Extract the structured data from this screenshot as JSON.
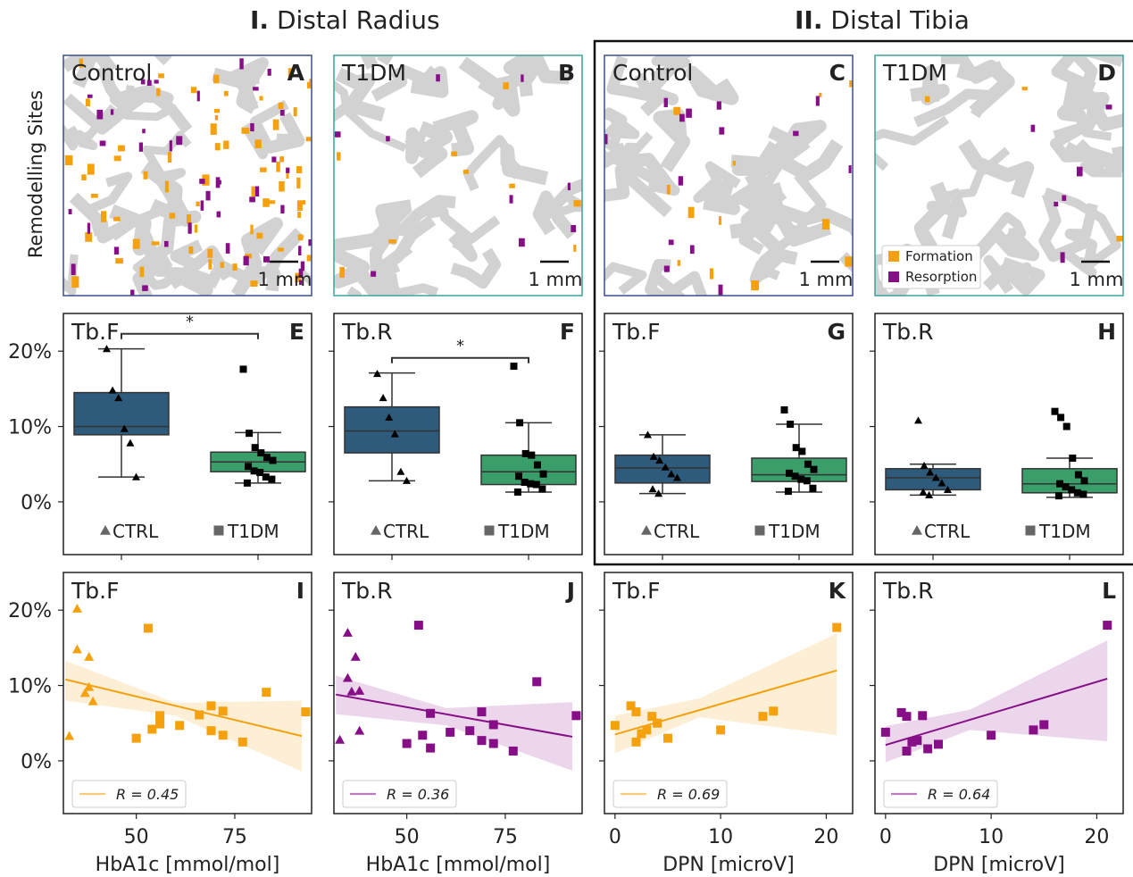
{
  "sections": {
    "left": {
      "roman": "I.",
      "label": "Distal Radius"
    },
    "right": {
      "roman": "II.",
      "label": "Distal Tibia"
    }
  },
  "row1_ylabel": "Remodelling Sites",
  "colors": {
    "ctrl": "#2e5a7c",
    "t1dm": "#3a9e6a",
    "formation": "#f5a10e",
    "resorption": "#860e86",
    "bone": "#d2d2d2",
    "frame_ctrl": "#3b4f8c",
    "frame_t1dm": "#3aa39a"
  },
  "legend_map": {
    "formation": "Formation",
    "resorption": "Resorption"
  },
  "maps": [
    {
      "title": "Control",
      "letter": "A",
      "scale": "1 mm",
      "frame": "ctrl",
      "seed": 11,
      "nForm": 70,
      "nRes": 45
    },
    {
      "title": "T1DM",
      "letter": "B",
      "scale": "1 mm",
      "frame": "t1dm",
      "seed": 23,
      "nForm": 10,
      "nRes": 9
    },
    {
      "title": "Control",
      "letter": "C",
      "scale": "1 mm",
      "frame": "ctrl",
      "seed": 37,
      "nForm": 12,
      "nRes": 14
    },
    {
      "title": "T1DM",
      "letter": "D",
      "scale": "1 mm",
      "frame": "t1dm",
      "seed": 53,
      "nForm": 3,
      "nRes": 6
    }
  ],
  "chart_data": [
    {
      "panel": "E",
      "type": "box",
      "title": "Tb.F",
      "ylim": [
        -7,
        25
      ],
      "yticks": [
        "0%",
        "10%",
        "20%"
      ],
      "categories": [
        "CTRL",
        "T1DM"
      ],
      "significance": "*",
      "boxes": [
        {
          "name": "CTRL",
          "whisker_low": 3.3,
          "q1": 8.9,
          "median": 10.0,
          "q3": 14.5,
          "whisker_high": 20.3,
          "points": [
            20.3,
            14.8,
            13.8,
            9.7,
            7.8,
            3.3
          ]
        },
        {
          "name": "T1DM",
          "whisker_low": 2.5,
          "q1": 4.0,
          "median": 5.3,
          "q3": 6.6,
          "whisker_high": 9.2,
          "points": [
            17.6,
            9.1,
            7.2,
            6.5,
            5.9,
            5.5,
            4.7,
            4.1,
            3.9,
            3.3,
            3.0,
            2.5
          ]
        }
      ]
    },
    {
      "panel": "F",
      "type": "box",
      "title": "Tb.R",
      "ylim": [
        -7,
        25
      ],
      "yticks": [],
      "categories": [
        "CTRL",
        "T1DM"
      ],
      "significance": "*",
      "boxes": [
        {
          "name": "CTRL",
          "whisker_low": 2.8,
          "q1": 6.5,
          "median": 9.4,
          "q3": 12.6,
          "whisker_high": 17.1,
          "points": [
            17.0,
            13.8,
            11.2,
            9.0,
            4.0,
            2.8
          ]
        },
        {
          "name": "T1DM",
          "whisker_low": 1.3,
          "q1": 2.3,
          "median": 4.0,
          "q3": 6.2,
          "whisker_high": 10.5,
          "points": [
            18.0,
            10.5,
            6.4,
            6.2,
            4.9,
            3.7,
            3.4,
            2.6,
            2.4,
            2.3,
            1.7,
            1.3
          ]
        }
      ]
    },
    {
      "panel": "G",
      "type": "box",
      "title": "Tb.F",
      "ylim": [
        -7,
        25
      ],
      "yticks": [],
      "categories": [
        "CTRL",
        "T1DM"
      ],
      "significance": "",
      "boxes": [
        {
          "name": "CTRL",
          "whisker_low": 1.1,
          "q1": 2.5,
          "median": 4.5,
          "q3": 6.2,
          "whisker_high": 8.9,
          "points": [
            8.9,
            6.0,
            5.5,
            4.6,
            3.7,
            3.2,
            1.7,
            1.1
          ]
        },
        {
          "name": "T1DM",
          "whisker_low": 1.3,
          "q1": 2.7,
          "median": 3.6,
          "q3": 5.8,
          "whisker_high": 10.3,
          "points": [
            12.2,
            10.3,
            7.2,
            6.7,
            5.0,
            4.3,
            3.8,
            3.4,
            3.0,
            2.8,
            1.8,
            1.4
          ]
        }
      ]
    },
    {
      "panel": "H",
      "type": "box",
      "title": "Tb.R",
      "ylim": [
        -7,
        25
      ],
      "yticks": [],
      "categories": [
        "CTRL",
        "T1DM"
      ],
      "significance": "",
      "boxes": [
        {
          "name": "CTRL",
          "whisker_low": 0.9,
          "q1": 1.6,
          "median": 3.2,
          "q3": 4.4,
          "whisker_high": 5.0,
          "points": [
            10.8,
            4.8,
            3.9,
            3.2,
            2.5,
            1.6,
            1.3,
            0.9
          ]
        },
        {
          "name": "T1DM",
          "whisker_low": 0.6,
          "q1": 1.2,
          "median": 2.4,
          "q3": 4.4,
          "whisker_high": 5.8,
          "points": [
            12.0,
            11.2,
            10.0,
            5.8,
            3.6,
            2.8,
            2.4,
            2.0,
            1.6,
            1.2,
            1.0,
            0.8
          ]
        }
      ]
    },
    {
      "panel": "I",
      "type": "scatter",
      "title": "Tb.F",
      "xlabel": "HbA1c [mmol/mol]",
      "xlim": [
        31.5,
        94.5
      ],
      "xticks": [
        50,
        75
      ],
      "ylim": [
        -7,
        25
      ],
      "yticks": [
        "0%",
        "10%",
        "20%"
      ],
      "color": "formation",
      "legend": "R = 0.45",
      "ctrl": [
        [
          33,
          3.3
        ],
        [
          35,
          20.2
        ],
        [
          35,
          14.8
        ],
        [
          38,
          13.8
        ],
        [
          38,
          9.8
        ],
        [
          37,
          9.0
        ],
        [
          39,
          7.9
        ]
      ],
      "t1dm": [
        [
          53,
          17.6
        ],
        [
          50,
          3.0
        ],
        [
          54,
          4.2
        ],
        [
          56,
          6.0
        ],
        [
          56,
          4.9
        ],
        [
          61,
          4.7
        ],
        [
          66,
          6.1
        ],
        [
          69,
          7.3
        ],
        [
          69,
          4.0
        ],
        [
          72,
          6.6
        ],
        [
          72,
          3.4
        ],
        [
          77,
          2.5
        ],
        [
          83,
          9.1
        ],
        [
          93,
          6.5
        ]
      ],
      "fit": [
        [
          32,
          10.8
        ],
        [
          92,
          3.3
        ]
      ],
      "band_lo": [
        [
          32,
          8.0
        ],
        [
          60,
          6.0
        ],
        [
          92,
          -1.4
        ]
      ],
      "band_hi": [
        [
          32,
          13.3
        ],
        [
          60,
          7.7
        ],
        [
          92,
          8.0
        ]
      ]
    },
    {
      "panel": "J",
      "type": "scatter",
      "title": "Tb.R",
      "xlabel": "HbA1c [mmol/mol]",
      "xlim": [
        31.5,
        94.5
      ],
      "xticks": [
        50,
        75
      ],
      "ylim": [
        -7,
        25
      ],
      "yticks": [],
      "color": "resorption",
      "legend": "R = 0.36",
      "ctrl": [
        [
          33,
          2.8
        ],
        [
          35,
          17.0
        ],
        [
          35,
          11.0
        ],
        [
          37,
          13.8
        ],
        [
          36,
          9.2
        ],
        [
          38,
          9.3
        ],
        [
          38,
          4.0
        ]
      ],
      "t1dm": [
        [
          53,
          18.0
        ],
        [
          50,
          2.3
        ],
        [
          54,
          3.4
        ],
        [
          56,
          6.3
        ],
        [
          56,
          1.7
        ],
        [
          61,
          3.8
        ],
        [
          66,
          4.0
        ],
        [
          69,
          6.5
        ],
        [
          69,
          2.7
        ],
        [
          72,
          4.8
        ],
        [
          72,
          2.3
        ],
        [
          77,
          1.3
        ],
        [
          83,
          10.5
        ],
        [
          93,
          6.0
        ]
      ],
      "fit": [
        [
          32,
          8.8
        ],
        [
          92,
          3.2
        ]
      ],
      "band_lo": [
        [
          32,
          6.2
        ],
        [
          60,
          4.7
        ],
        [
          92,
          -1.3
        ]
      ],
      "band_hi": [
        [
          32,
          11.3
        ],
        [
          60,
          7.0
        ],
        [
          92,
          7.8
        ]
      ]
    },
    {
      "panel": "K",
      "type": "scatter",
      "title": "Tb.F",
      "xlabel": "DPN [microV]",
      "xlim": [
        -1,
        22.5
      ],
      "xticks": [
        0,
        10,
        20
      ],
      "ylim": [
        -7,
        25
      ],
      "yticks": [],
      "color": "formation",
      "legend": "R = 0.69",
      "ctrl": [],
      "t1dm": [
        [
          0,
          4.7
        ],
        [
          1.5,
          7.3
        ],
        [
          2,
          6.5
        ],
        [
          2,
          2.5
        ],
        [
          2.5,
          3.6
        ],
        [
          3,
          4.1
        ],
        [
          3.5,
          5.9
        ],
        [
          4,
          5.0
        ],
        [
          5,
          3.0
        ],
        [
          10,
          4.1
        ],
        [
          14,
          5.9
        ],
        [
          15,
          6.6
        ],
        [
          21,
          17.7
        ]
      ],
      "fit": [
        [
          0,
          3.5
        ],
        [
          21,
          12.0
        ]
      ],
      "band_lo": [
        [
          0,
          1.0
        ],
        [
          8,
          5.8
        ],
        [
          21,
          3.4
        ]
      ],
      "band_hi": [
        [
          0,
          6.0
        ],
        [
          8,
          8.3
        ],
        [
          21,
          16.9
        ]
      ]
    },
    {
      "panel": "L",
      "type": "scatter",
      "title": "Tb.R",
      "xlabel": "DPN [microV]",
      "xlim": [
        -1,
        22.5
      ],
      "xticks": [
        0,
        10,
        20
      ],
      "ylim": [
        -7,
        25
      ],
      "yticks": [],
      "color": "resorption",
      "legend": "R = 0.64",
      "ctrl": [],
      "t1dm": [
        [
          0,
          3.8
        ],
        [
          1.5,
          6.4
        ],
        [
          2,
          5.9
        ],
        [
          2,
          1.3
        ],
        [
          2.5,
          2.5
        ],
        [
          3,
          2.7
        ],
        [
          3.5,
          6.0
        ],
        [
          4,
          1.6
        ],
        [
          5,
          2.2
        ],
        [
          10,
          3.4
        ],
        [
          14,
          4.1
        ],
        [
          15,
          4.8
        ],
        [
          21,
          18.0
        ]
      ],
      "fit": [
        [
          0,
          2.1
        ],
        [
          21,
          10.9
        ]
      ],
      "band_lo": [
        [
          0,
          -0.2
        ],
        [
          8,
          4.1
        ],
        [
          21,
          2.6
        ]
      ],
      "band_hi": [
        [
          0,
          4.6
        ],
        [
          8,
          6.8
        ],
        [
          21,
          16.0
        ]
      ]
    }
  ]
}
